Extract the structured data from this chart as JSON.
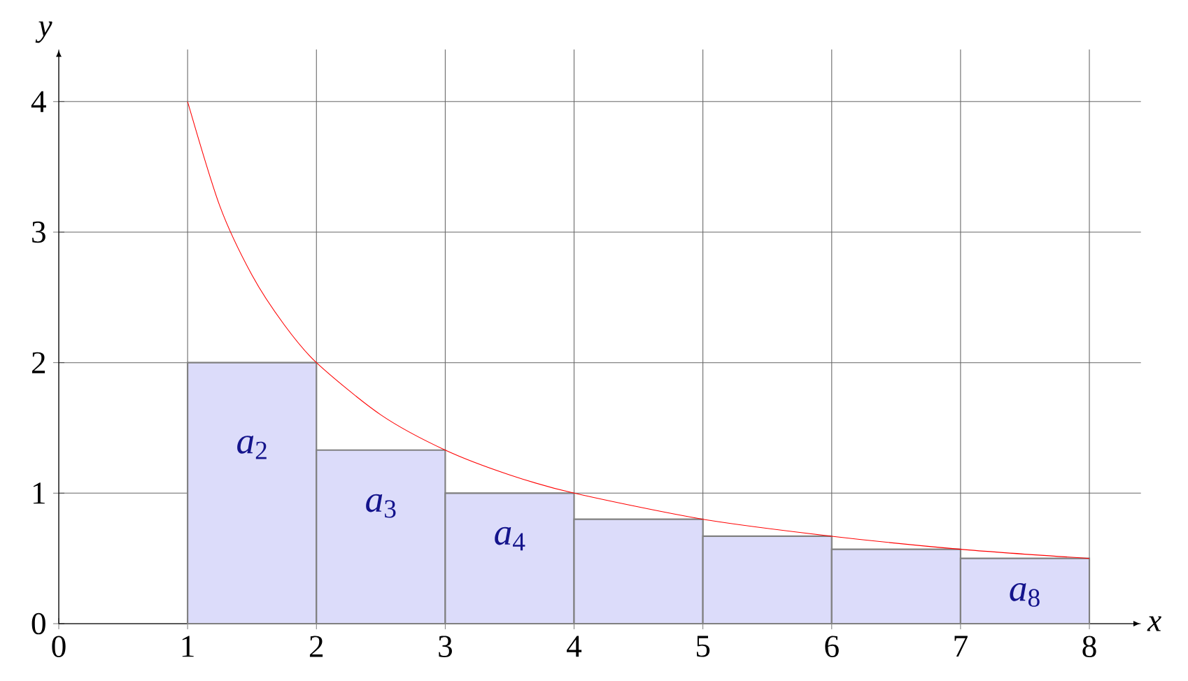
{
  "chart_data": {
    "type": "histogram",
    "xlabel": "x",
    "ylabel": "y",
    "series": [
      {
        "bins": [
          1,
          2,
          3,
          4,
          5,
          6,
          7,
          8
        ],
        "values": [
          2,
          1.33,
          1,
          0.8,
          0.67,
          0.57,
          0.5
        ],
        "color": "#dcdcfa"
      },
      {
        "type": "line",
        "x": [
          1,
          1.25,
          1.5,
          1.75,
          2,
          2.5,
          3,
          3.5,
          4,
          5,
          6,
          7,
          8
        ],
        "values": [
          4,
          3.2,
          2.67,
          2.29,
          2,
          1.6,
          1.33,
          1.14,
          1,
          0.8,
          0.67,
          0.57,
          0.5
        ],
        "color": "#ff0000"
      }
    ],
    "xlim": [
      0,
      8.4
    ],
    "ylim": [
      0,
      4.4
    ],
    "xticks": [
      0,
      1,
      2,
      3,
      4,
      5,
      6,
      7,
      8
    ],
    "yticks": [
      0,
      1,
      2,
      3,
      4
    ],
    "grid": true,
    "marker": "none",
    "annotations": [
      "*a*$_{2}$",
      "*a*$_{3}$",
      "*a*$_{4}$",
      "*a*$_{8}$"
    ]
  }
}
